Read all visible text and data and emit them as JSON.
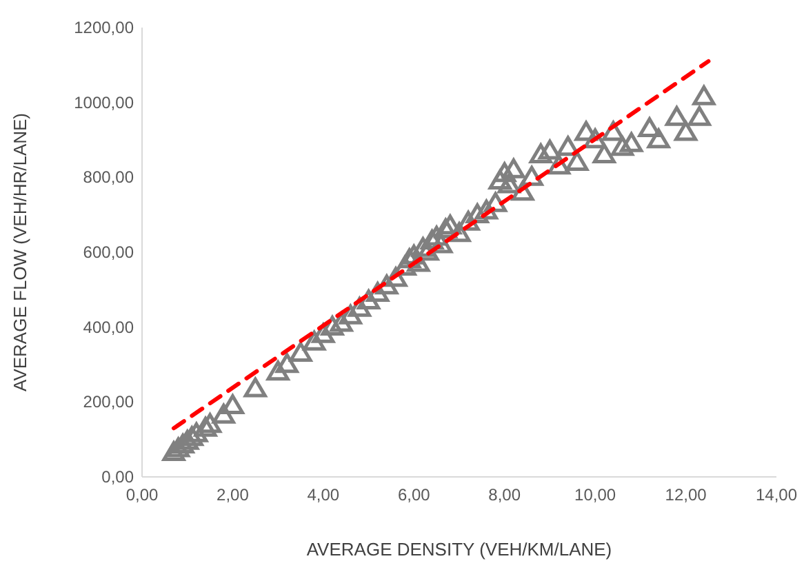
{
  "chart_data": {
    "type": "scatter",
    "xlabel": "AVERAGE DENSITY (VEH/KM/LANE)",
    "ylabel": "AVERAGE FLOW (VEH/HR/LANE)",
    "xlim": [
      0,
      14
    ],
    "ylim": [
      0,
      1200
    ],
    "xticks": [
      {
        "value": 0,
        "label": "0,00"
      },
      {
        "value": 2,
        "label": "2,00"
      },
      {
        "value": 4,
        "label": "4,00"
      },
      {
        "value": 6,
        "label": "6,00"
      },
      {
        "value": 8,
        "label": "8,00"
      },
      {
        "value": 10,
        "label": "10,00"
      },
      {
        "value": 12,
        "label": "12,00"
      },
      {
        "value": 14,
        "label": "14,00"
      }
    ],
    "yticks": [
      {
        "value": 0,
        "label": "0,00"
      },
      {
        "value": 200,
        "label": "200,00"
      },
      {
        "value": 400,
        "label": "400,00"
      },
      {
        "value": 600,
        "label": "600,00"
      },
      {
        "value": 800,
        "label": "800,00"
      },
      {
        "value": 1000,
        "label": "1000,00"
      },
      {
        "value": 1200,
        "label": "1200,00"
      }
    ],
    "grid": false,
    "series": [
      {
        "color": "#808080",
        "marker": "triangle",
        "x": [
          0.7,
          0.8,
          0.9,
          1.0,
          1.1,
          1.2,
          1.4,
          1.5,
          1.8,
          2.0,
          2.5,
          3.0,
          3.2,
          3.5,
          3.8,
          4.0,
          4.2,
          4.4,
          4.6,
          4.8,
          5.0,
          5.2,
          5.4,
          5.6,
          5.8,
          5.9,
          6.0,
          6.1,
          6.2,
          6.3,
          6.4,
          6.5,
          6.6,
          6.7,
          6.8,
          7.0,
          7.2,
          7.4,
          7.6,
          7.8,
          7.9,
          8.0,
          8.1,
          8.2,
          8.4,
          8.6,
          8.8,
          9.0,
          9.2,
          9.4,
          9.6,
          9.8,
          10.0,
          10.2,
          10.4,
          10.6,
          10.8,
          11.2,
          11.4,
          11.8,
          12.0,
          12.3,
          12.4
        ],
        "values": [
          65,
          75,
          85,
          95,
          105,
          115,
          130,
          140,
          165,
          190,
          235,
          280,
          300,
          330,
          360,
          380,
          400,
          410,
          430,
          450,
          470,
          490,
          510,
          530,
          560,
          580,
          590,
          570,
          610,
          600,
          630,
          640,
          620,
          660,
          670,
          650,
          680,
          700,
          710,
          730,
          790,
          810,
          780,
          820,
          760,
          800,
          860,
          870,
          830,
          880,
          840,
          920,
          900,
          860,
          920,
          880,
          890,
          930,
          900,
          960,
          920,
          960,
          1015
        ]
      },
      {
        "type": "line",
        "color": "#ff0000",
        "line_style": "dashed",
        "marker": "none",
        "x": [
          0.7,
          12.5
        ],
        "values": [
          130,
          1110
        ]
      }
    ]
  }
}
